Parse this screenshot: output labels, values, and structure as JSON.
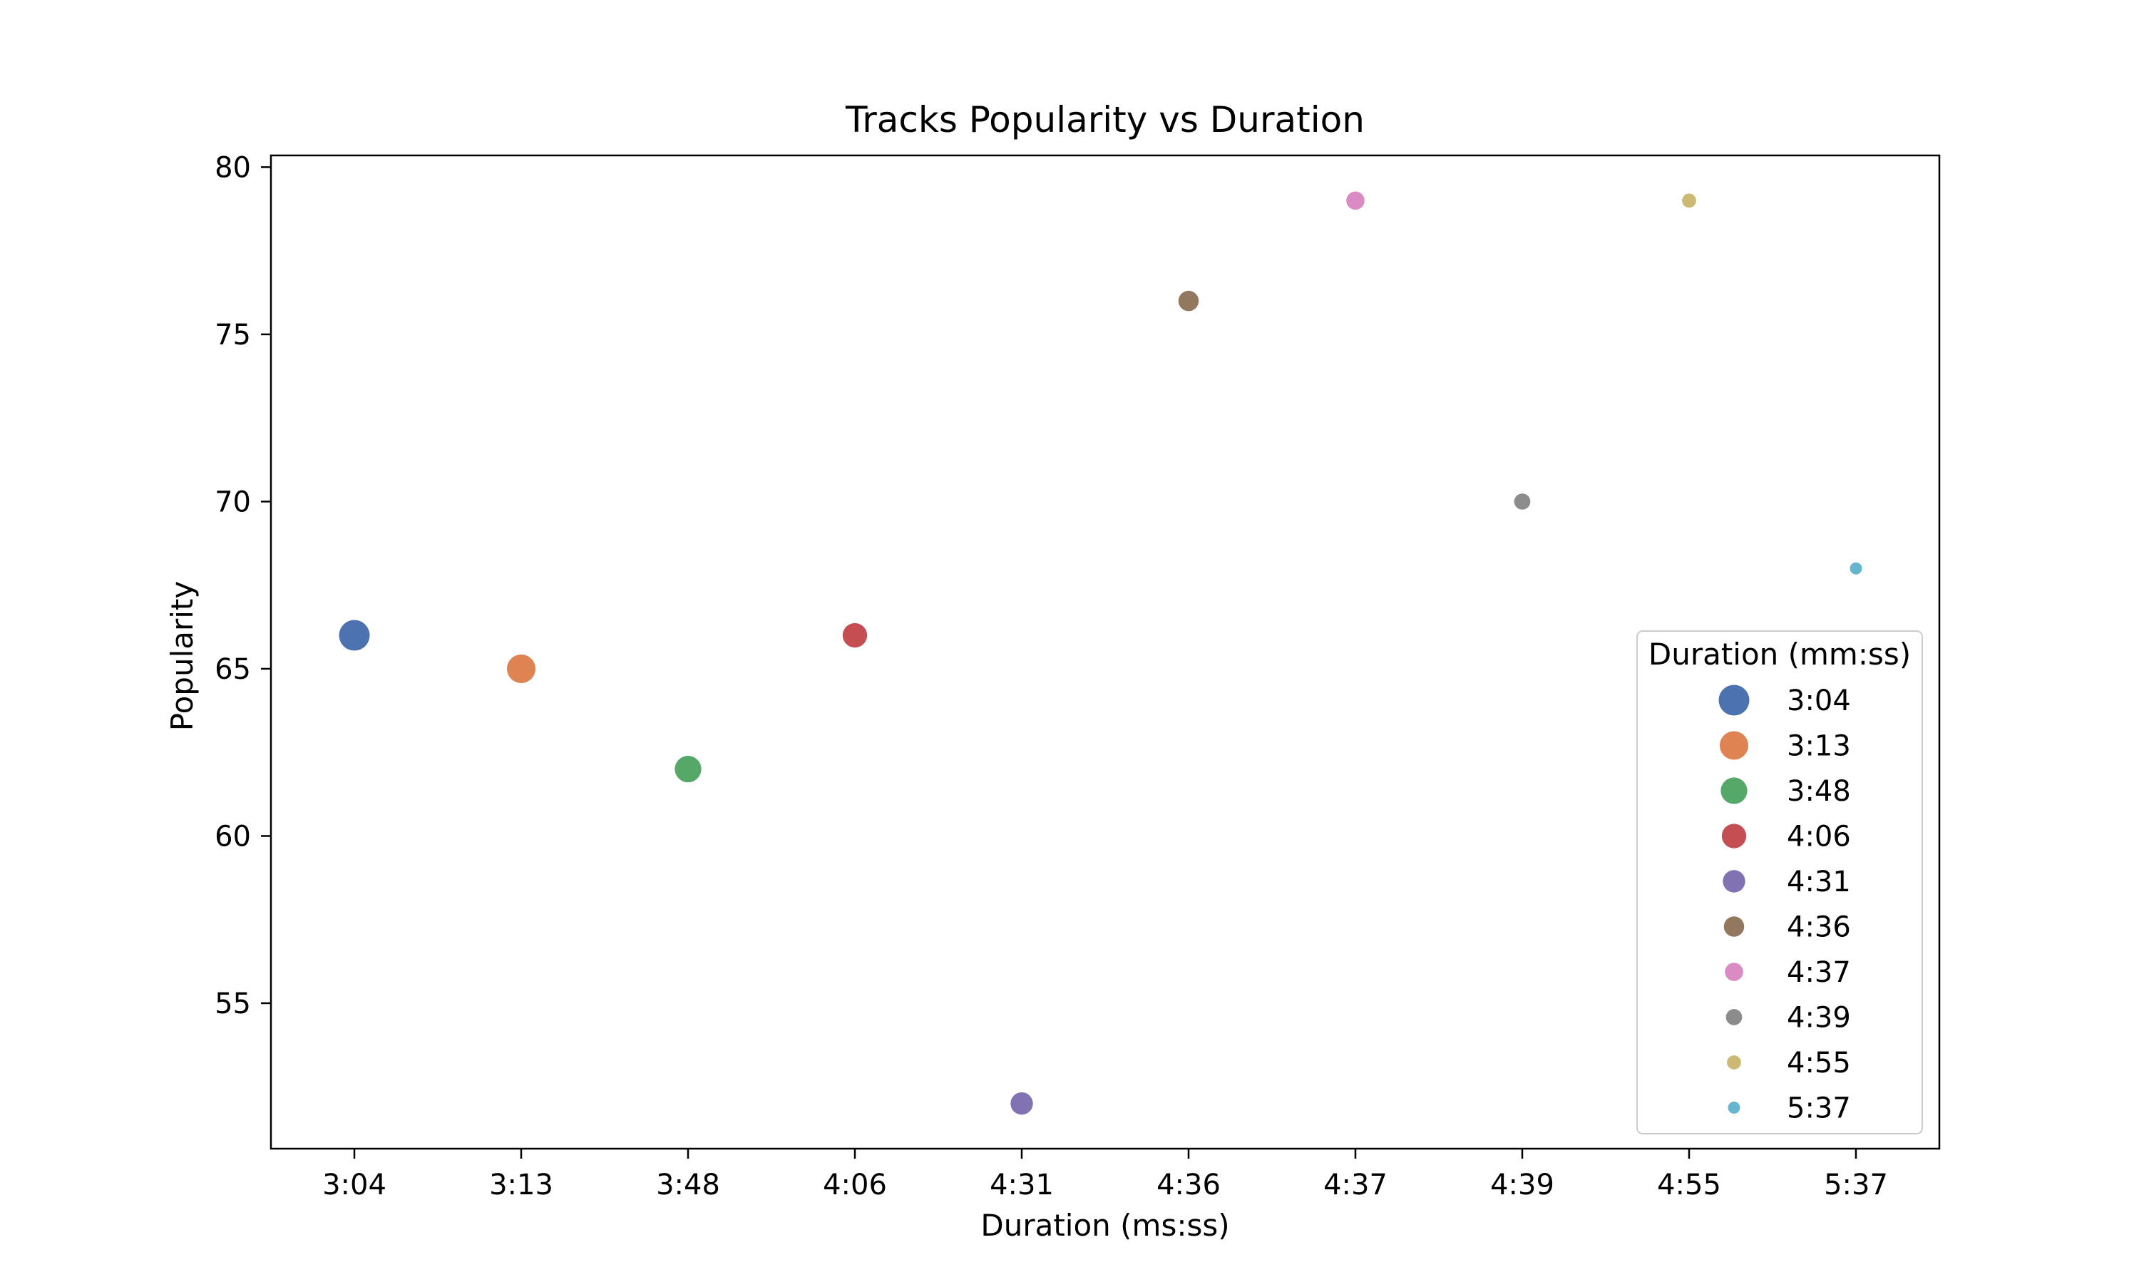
{
  "chart_data": {
    "type": "scatter",
    "title": "Tracks Popularity vs Duration",
    "xlabel": "Duration (ms:ss)",
    "ylabel": "Popularity",
    "categories": [
      "3:04",
      "3:13",
      "3:48",
      "4:06",
      "4:31",
      "4:36",
      "4:37",
      "4:39",
      "4:55",
      "5:37"
    ],
    "values": [
      66,
      65,
      62,
      66,
      52,
      76,
      79,
      70,
      79,
      68
    ],
    "colors": [
      "#4c72b0",
      "#dd8452",
      "#55a868",
      "#c44e52",
      "#8172b3",
      "#937860",
      "#da8bc3",
      "#8c8c8c",
      "#ccb974",
      "#64b5cd"
    ],
    "marker_size_rank": [
      10,
      9,
      8,
      7,
      6,
      5,
      4,
      3,
      2,
      1
    ],
    "ylim": [
      50.65,
      80.35
    ],
    "yticks": [
      55,
      60,
      65,
      70,
      75,
      80
    ],
    "grid": false,
    "legend": {
      "title": "Duration (mm:ss)",
      "position": "lower right",
      "entries": [
        "3:04",
        "3:13",
        "3:48",
        "4:06",
        "4:31",
        "4:36",
        "4:37",
        "4:39",
        "4:55",
        "5:37"
      ]
    }
  }
}
